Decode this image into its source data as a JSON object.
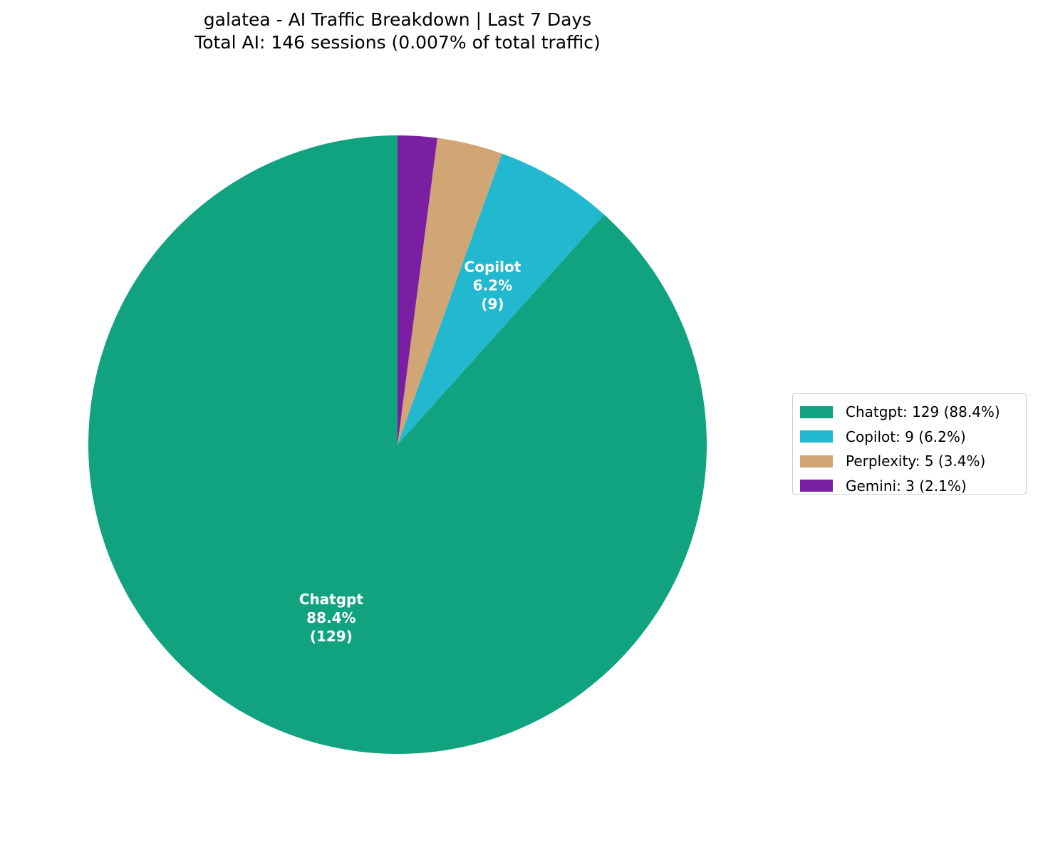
{
  "chart_data": {
    "type": "pie",
    "title": "galatea - AI Traffic Breakdown | Last 7 Days",
    "subtitle": "Total AI: 146 sessions (0.007% of total traffic)",
    "total_sessions": 146,
    "share_of_total_traffic_pct": 0.007,
    "categories": [
      "Chatgpt",
      "Copilot",
      "Perplexity",
      "Gemini"
    ],
    "values": [
      129,
      9,
      5,
      3
    ],
    "percentages": [
      88.4,
      6.2,
      3.4,
      2.1
    ],
    "colors": [
      "#11a37f",
      "#22b8cf",
      "#d2a574",
      "#7b1fa2"
    ],
    "start_angle": 90,
    "direction": "counterclockwise",
    "slice_labels": [
      {
        "name": "Chatgpt",
        "pct": "88.4%",
        "count": "(129)"
      },
      {
        "name": "Copilot",
        "pct": "6.2%",
        "count": "(9)"
      }
    ],
    "legend": {
      "position": "right",
      "entries": [
        "Chatgpt: 129 (88.4%)",
        "Copilot: 9 (6.2%)",
        "Perplexity: 5 (3.4%)",
        "Gemini: 3 (2.1%)"
      ]
    }
  }
}
